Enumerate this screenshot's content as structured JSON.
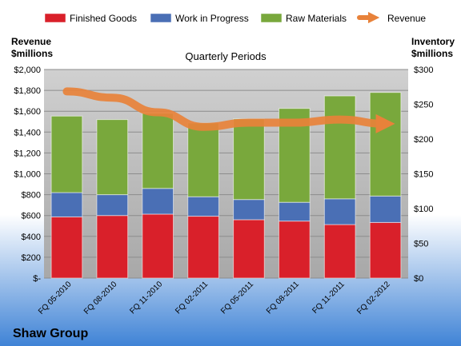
{
  "colors": {
    "finished_goods": "#d9202a",
    "work_in_progress": "#4a6fb5",
    "raw_materials": "#79a83c",
    "revenue": "#e8823a",
    "plot_bg": "#b3b3b3",
    "grid": "#8c8c8c",
    "background_top": "#ffffff",
    "background_bottom": "#3f83d6"
  },
  "chart_data": {
    "type": "bar",
    "stacked": true,
    "title": "Quarterly Periods",
    "company": "Shaw Group",
    "categories": [
      "FQ 05-2010",
      "FQ 08-2010",
      "FQ 11-2010",
      "FQ 02-2011",
      "FQ 05-2011",
      "FQ 08-2011",
      "FQ 11-2011",
      "FQ 02-2012"
    ],
    "left_axis": {
      "label_line1": "Revenue",
      "label_line2": "$millions",
      "ylim": [
        0,
        2000
      ],
      "ticks": [
        "$-",
        "$200",
        "$400",
        "$600",
        "$800",
        "$1,000",
        "$1,200",
        "$1,400",
        "$1,600",
        "$1,800",
        "$2,000"
      ]
    },
    "right_axis": {
      "label_line1": "Inventory",
      "label_line2": "$millions",
      "ylim": [
        0,
        300
      ],
      "ticks": [
        "$0",
        "$50",
        "$100",
        "$150",
        "$200",
        "$250",
        "$300"
      ]
    },
    "series": [
      {
        "name": "Finished Goods",
        "axis": "right",
        "kind": "bar",
        "values": [
          88,
          90,
          92,
          89,
          84,
          82,
          77,
          80
        ]
      },
      {
        "name": "Work in Progress",
        "axis": "right",
        "kind": "bar",
        "values": [
          35,
          30,
          37,
          28,
          29,
          27,
          37,
          38
        ]
      },
      {
        "name": "Raw Materials",
        "axis": "right",
        "kind": "bar",
        "values": [
          110,
          108,
          108,
          106,
          116,
          135,
          148,
          149
        ]
      },
      {
        "name": "Revenue",
        "axis": "left",
        "kind": "line",
        "values": [
          1790,
          1730,
          1590,
          1450,
          1490,
          1490,
          1520,
          1480
        ]
      }
    ],
    "legend_position": "top",
    "grid": true
  }
}
